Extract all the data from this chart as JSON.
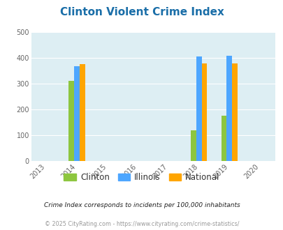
{
  "title": "Clinton Violent Crime Index",
  "years": [
    2013,
    2014,
    2015,
    2016,
    2017,
    2018,
    2019,
    2020
  ],
  "bar_years": [
    2014,
    2018,
    2019
  ],
  "clinton": [
    310,
    120,
    175
  ],
  "illinois": [
    368,
    405,
    408
  ],
  "national": [
    376,
    380,
    380
  ],
  "clinton_color": "#8dc63f",
  "illinois_color": "#4da6ff",
  "national_color": "#ffa500",
  "background_color": "#ddeef3",
  "ylim": [
    0,
    500
  ],
  "yticks": [
    0,
    100,
    200,
    300,
    400,
    500
  ],
  "bar_width": 0.18,
  "xlim": [
    2012.5,
    2020.5
  ],
  "xlabel": "",
  "ylabel": "",
  "legend_labels": [
    "Clinton",
    "Illinois",
    "National"
  ],
  "footnote1": "Crime Index corresponds to incidents per 100,000 inhabitants",
  "footnote2": "© 2025 CityRating.com - https://www.cityrating.com/crime-statistics/"
}
